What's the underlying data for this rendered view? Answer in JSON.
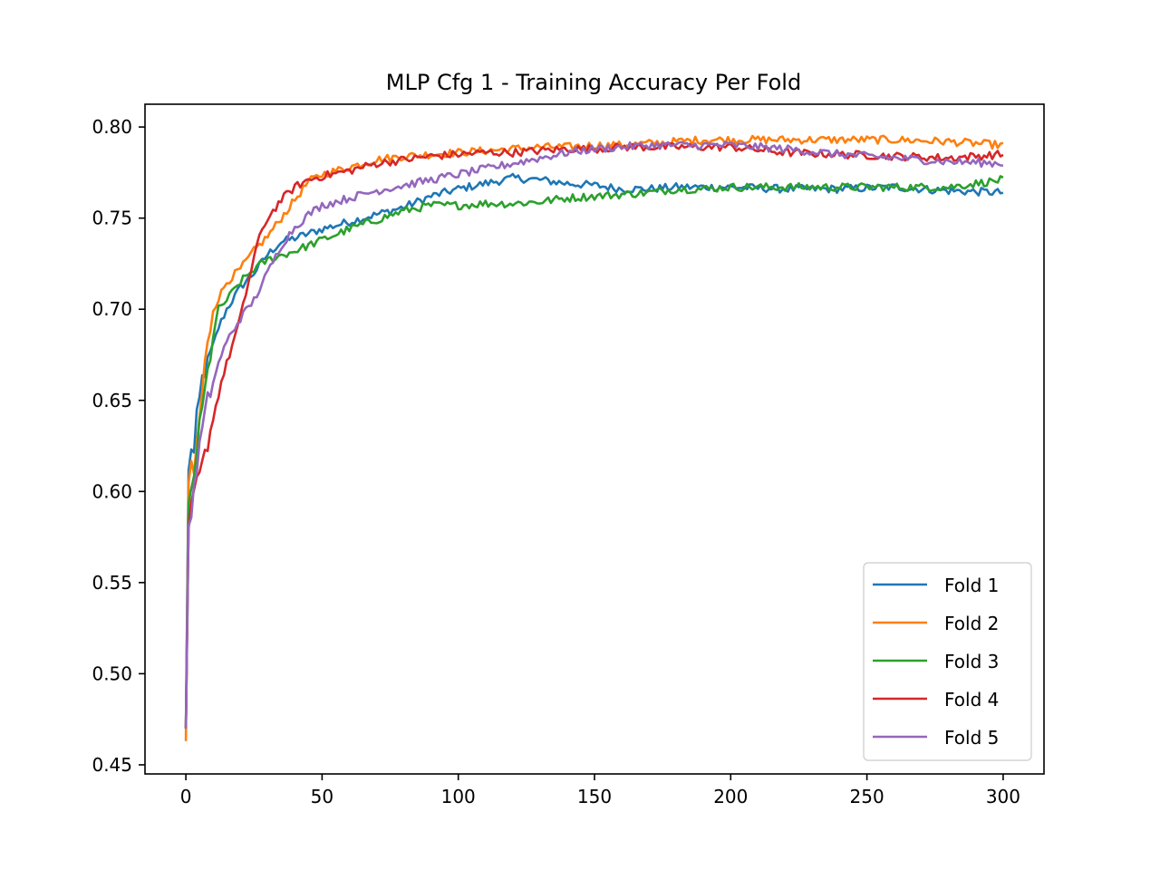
{
  "chart_data": {
    "type": "line",
    "title": "MLP Cfg 1 - Training Accuracy Per Fold",
    "xlabel": "",
    "ylabel": "",
    "xlim": [
      -15,
      315
    ],
    "ylim": [
      0.445,
      0.8125
    ],
    "x_ticks": [
      0,
      50,
      100,
      150,
      200,
      250,
      300
    ],
    "y_ticks": [
      0.45,
      0.5,
      0.55,
      0.6,
      0.65,
      0.7,
      0.75,
      0.8
    ],
    "grid": false,
    "legend_position": "lower-right",
    "series": [
      {
        "name": "Fold 1",
        "color": "#1f77b4",
        "points": [
          [
            0,
            0.47
          ],
          [
            1,
            0.61
          ],
          [
            2,
            0.625
          ],
          [
            3,
            0.62
          ],
          [
            4,
            0.64
          ],
          [
            5,
            0.65
          ],
          [
            6,
            0.662
          ],
          [
            8,
            0.67
          ],
          [
            10,
            0.68
          ],
          [
            12,
            0.69
          ],
          [
            15,
            0.7
          ],
          [
            20,
            0.712
          ],
          [
            25,
            0.72
          ],
          [
            30,
            0.73
          ],
          [
            35,
            0.737
          ],
          [
            40,
            0.739
          ],
          [
            50,
            0.744
          ],
          [
            60,
            0.748
          ],
          [
            70,
            0.752
          ],
          [
            80,
            0.756
          ],
          [
            90,
            0.762
          ],
          [
            100,
            0.766
          ],
          [
            110,
            0.769
          ],
          [
            120,
            0.772
          ],
          [
            130,
            0.771
          ],
          [
            140,
            0.769
          ],
          [
            150,
            0.768
          ],
          [
            160,
            0.766
          ],
          [
            170,
            0.766
          ],
          [
            180,
            0.767
          ],
          [
            190,
            0.767
          ],
          [
            200,
            0.767
          ],
          [
            220,
            0.766
          ],
          [
            240,
            0.766
          ],
          [
            260,
            0.767
          ],
          [
            280,
            0.765
          ],
          [
            300,
            0.764
          ]
        ]
      },
      {
        "name": "Fold 2",
        "color": "#ff7f0e",
        "points": [
          [
            0,
            0.463
          ],
          [
            1,
            0.6
          ],
          [
            2,
            0.615
          ],
          [
            3,
            0.61
          ],
          [
            5,
            0.64
          ],
          [
            7,
            0.67
          ],
          [
            10,
            0.7
          ],
          [
            15,
            0.715
          ],
          [
            20,
            0.722
          ],
          [
            25,
            0.732
          ],
          [
            30,
            0.74
          ],
          [
            35,
            0.75
          ],
          [
            40,
            0.76
          ],
          [
            45,
            0.77
          ],
          [
            50,
            0.774
          ],
          [
            60,
            0.778
          ],
          [
            70,
            0.782
          ],
          [
            80,
            0.784
          ],
          [
            90,
            0.785
          ],
          [
            100,
            0.786
          ],
          [
            110,
            0.787
          ],
          [
            120,
            0.788
          ],
          [
            130,
            0.789
          ],
          [
            140,
            0.789
          ],
          [
            150,
            0.79
          ],
          [
            160,
            0.79
          ],
          [
            170,
            0.791
          ],
          [
            180,
            0.792
          ],
          [
            190,
            0.793
          ],
          [
            200,
            0.793
          ],
          [
            220,
            0.793
          ],
          [
            240,
            0.793
          ],
          [
            260,
            0.793
          ],
          [
            280,
            0.792
          ],
          [
            300,
            0.79
          ]
        ]
      },
      {
        "name": "Fold 3",
        "color": "#2ca02c",
        "points": [
          [
            0,
            0.47
          ],
          [
            1,
            0.59
          ],
          [
            3,
            0.61
          ],
          [
            5,
            0.635
          ],
          [
            8,
            0.665
          ],
          [
            10,
            0.685
          ],
          [
            12,
            0.7
          ],
          [
            15,
            0.705
          ],
          [
            20,
            0.715
          ],
          [
            25,
            0.722
          ],
          [
            30,
            0.727
          ],
          [
            40,
            0.732
          ],
          [
            50,
            0.738
          ],
          [
            60,
            0.744
          ],
          [
            70,
            0.749
          ],
          [
            80,
            0.754
          ],
          [
            90,
            0.757
          ],
          [
            100,
            0.757
          ],
          [
            110,
            0.758
          ],
          [
            120,
            0.758
          ],
          [
            130,
            0.759
          ],
          [
            140,
            0.761
          ],
          [
            150,
            0.762
          ],
          [
            160,
            0.763
          ],
          [
            170,
            0.764
          ],
          [
            180,
            0.766
          ],
          [
            190,
            0.766
          ],
          [
            200,
            0.767
          ],
          [
            220,
            0.767
          ],
          [
            240,
            0.767
          ],
          [
            260,
            0.767
          ],
          [
            280,
            0.767
          ],
          [
            300,
            0.771
          ]
        ]
      },
      {
        "name": "Fold 4",
        "color": "#d62728",
        "points": [
          [
            0,
            0.47
          ],
          [
            1,
            0.575
          ],
          [
            2,
            0.59
          ],
          [
            3,
            0.6
          ],
          [
            5,
            0.608
          ],
          [
            7,
            0.62
          ],
          [
            10,
            0.64
          ],
          [
            13,
            0.66
          ],
          [
            16,
            0.675
          ],
          [
            20,
            0.695
          ],
          [
            23,
            0.715
          ],
          [
            26,
            0.735
          ],
          [
            30,
            0.75
          ],
          [
            35,
            0.76
          ],
          [
            40,
            0.767
          ],
          [
            45,
            0.771
          ],
          [
            50,
            0.773
          ],
          [
            60,
            0.776
          ],
          [
            70,
            0.78
          ],
          [
            80,
            0.782
          ],
          [
            90,
            0.784
          ],
          [
            100,
            0.785
          ],
          [
            110,
            0.786
          ],
          [
            120,
            0.786
          ],
          [
            130,
            0.787
          ],
          [
            140,
            0.788
          ],
          [
            150,
            0.788
          ],
          [
            160,
            0.789
          ],
          [
            170,
            0.789
          ],
          [
            180,
            0.789
          ],
          [
            190,
            0.789
          ],
          [
            200,
            0.789
          ],
          [
            220,
            0.786
          ],
          [
            240,
            0.785
          ],
          [
            260,
            0.784
          ],
          [
            280,
            0.783
          ],
          [
            300,
            0.785
          ]
        ]
      },
      {
        "name": "Fold 5",
        "color": "#9467bd",
        "points": [
          [
            0,
            0.47
          ],
          [
            1,
            0.58
          ],
          [
            3,
            0.6
          ],
          [
            5,
            0.625
          ],
          [
            8,
            0.65
          ],
          [
            10,
            0.66
          ],
          [
            13,
            0.675
          ],
          [
            16,
            0.685
          ],
          [
            20,
            0.695
          ],
          [
            25,
            0.705
          ],
          [
            30,
            0.72
          ],
          [
            35,
            0.735
          ],
          [
            40,
            0.745
          ],
          [
            45,
            0.752
          ],
          [
            50,
            0.757
          ],
          [
            60,
            0.761
          ],
          [
            70,
            0.765
          ],
          [
            80,
            0.768
          ],
          [
            90,
            0.771
          ],
          [
            100,
            0.774
          ],
          [
            110,
            0.777
          ],
          [
            120,
            0.78
          ],
          [
            130,
            0.783
          ],
          [
            140,
            0.786
          ],
          [
            150,
            0.788
          ],
          [
            160,
            0.789
          ],
          [
            170,
            0.79
          ],
          [
            180,
            0.79
          ],
          [
            190,
            0.79
          ],
          [
            200,
            0.79
          ],
          [
            220,
            0.788
          ],
          [
            240,
            0.785
          ],
          [
            260,
            0.783
          ],
          [
            280,
            0.781
          ],
          [
            300,
            0.78
          ]
        ]
      }
    ]
  }
}
